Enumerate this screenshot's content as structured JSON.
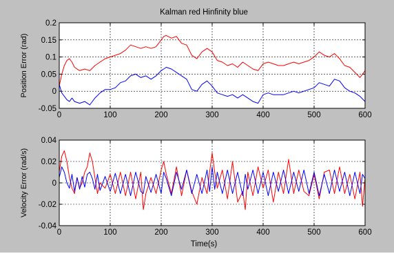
{
  "figure": {
    "title": "Kalman red    Hinfinity blue",
    "xlabel": "Time(s)"
  },
  "colors": {
    "kalman": "#ff0000",
    "hinfinity": "#0000ff",
    "figure_bg": "#c0c0c0"
  },
  "chart_data": [
    {
      "type": "line",
      "title": "Kalman red    Hinfinity blue",
      "xlabel": "",
      "ylabel": "Position Error (rad)",
      "xlim": [
        0,
        600
      ],
      "ylim": [
        -0.05,
        0.2
      ],
      "grid": true,
      "xticks": [
        0,
        100,
        200,
        300,
        400,
        500,
        600
      ],
      "yticks": [
        -0.05,
        0,
        0.05,
        0.1,
        0.15,
        0.2
      ],
      "xtick_labels": [
        "0",
        "100",
        "200",
        "300",
        "400",
        "500",
        "600"
      ],
      "ytick_labels": [
        "-0.05",
        "0",
        "0.05",
        "0.1",
        "0.15",
        "0.2"
      ],
      "series": [
        {
          "color": "#ff0000",
          "x": [
            0,
            5,
            10,
            15,
            20,
            25,
            30,
            40,
            50,
            60,
            70,
            80,
            90,
            100,
            110,
            120,
            130,
            140,
            150,
            160,
            170,
            180,
            190,
            200,
            205,
            210,
            220,
            230,
            240,
            250,
            260,
            270,
            280,
            290,
            300,
            310,
            320,
            330,
            340,
            350,
            360,
            370,
            380,
            390,
            400,
            410,
            420,
            430,
            440,
            450,
            460,
            470,
            480,
            490,
            500,
            510,
            520,
            530,
            540,
            550,
            560,
            570,
            580,
            590,
            600
          ],
          "y": [
            0.015,
            0.05,
            0.075,
            0.09,
            0.095,
            0.085,
            0.07,
            0.06,
            0.065,
            0.06,
            0.075,
            0.085,
            0.095,
            0.1,
            0.105,
            0.11,
            0.12,
            0.135,
            0.13,
            0.125,
            0.13,
            0.125,
            0.13,
            0.15,
            0.16,
            0.163,
            0.155,
            0.16,
            0.14,
            0.135,
            0.105,
            0.095,
            0.115,
            0.125,
            0.115,
            0.09,
            0.085,
            0.075,
            0.08,
            0.07,
            0.085,
            0.075,
            0.065,
            0.06,
            0.08,
            0.085,
            0.08,
            0.075,
            0.075,
            0.08,
            0.085,
            0.08,
            0.085,
            0.09,
            0.1,
            0.115,
            0.105,
            0.1,
            0.11,
            0.095,
            0.075,
            0.07,
            0.055,
            0.04,
            0.06
          ]
        },
        {
          "color": "#0000ff",
          "x": [
            0,
            5,
            10,
            15,
            20,
            25,
            30,
            40,
            50,
            60,
            70,
            80,
            90,
            100,
            110,
            120,
            130,
            140,
            150,
            160,
            170,
            180,
            190,
            200,
            205,
            210,
            220,
            230,
            240,
            250,
            260,
            270,
            280,
            290,
            300,
            310,
            320,
            330,
            340,
            350,
            360,
            370,
            380,
            390,
            400,
            410,
            420,
            430,
            440,
            450,
            460,
            470,
            480,
            490,
            500,
            510,
            520,
            530,
            540,
            550,
            560,
            570,
            580,
            590,
            600
          ],
          "y": [
            0.02,
            -0.005,
            -0.015,
            -0.025,
            -0.03,
            -0.02,
            -0.03,
            -0.035,
            -0.03,
            -0.04,
            -0.02,
            -0.005,
            0.005,
            0.005,
            0.01,
            0.025,
            0.03,
            0.045,
            0.05,
            0.04,
            0.045,
            0.035,
            0.045,
            0.06,
            0.065,
            0.07,
            0.065,
            0.055,
            0.045,
            0.035,
            0.005,
            0.0,
            0.02,
            0.03,
            0.015,
            -0.005,
            -0.01,
            -0.015,
            -0.01,
            -0.02,
            -0.01,
            -0.02,
            -0.03,
            -0.035,
            -0.01,
            -0.005,
            -0.01,
            -0.01,
            -0.01,
            -0.005,
            0.0,
            -0.005,
            0.0,
            0.005,
            0.01,
            0.025,
            0.02,
            0.015,
            0.035,
            0.03,
            0.01,
            0.0,
            -0.005,
            -0.015,
            -0.03
          ]
        }
      ]
    },
    {
      "type": "line",
      "title": "",
      "xlabel": "Time(s)",
      "ylabel": "Velocity Error (rad/s)",
      "xlim": [
        0,
        600
      ],
      "ylim": [
        -0.04,
        0.04
      ],
      "grid": true,
      "xticks": [
        0,
        100,
        200,
        300,
        400,
        500,
        600
      ],
      "yticks": [
        -0.04,
        -0.02,
        0,
        0.02,
        0.04
      ],
      "xtick_labels": [
        "0",
        "100",
        "200",
        "300",
        "400",
        "500",
        "600"
      ],
      "ytick_labels": [
        "-0.04",
        "-0.02",
        "0",
        "0.02",
        "0.04"
      ],
      "series": [
        {
          "color": "#ff0000",
          "x": [
            0,
            5,
            10,
            15,
            20,
            25,
            30,
            35,
            40,
            45,
            50,
            55,
            60,
            65,
            70,
            75,
            80,
            90,
            100,
            110,
            120,
            130,
            140,
            150,
            160,
            165,
            170,
            180,
            190,
            200,
            205,
            210,
            220,
            230,
            240,
            250,
            260,
            270,
            280,
            290,
            295,
            300,
            305,
            310,
            320,
            330,
            340,
            350,
            360,
            365,
            370,
            380,
            390,
            400,
            410,
            420,
            430,
            440,
            450,
            460,
            470,
            480,
            490,
            500,
            510,
            520,
            530,
            540,
            550,
            560,
            570,
            580,
            590,
            595,
            600
          ],
          "y": [
            0.01,
            0.025,
            0.03,
            0.02,
            0.005,
            -0.005,
            -0.01,
            0.005,
            -0.005,
            0.0,
            0.01,
            0.015,
            0.028,
            0.02,
            0.005,
            -0.01,
            0.0,
            -0.005,
            0.008,
            -0.01,
            0.01,
            -0.012,
            0.01,
            -0.015,
            0.01,
            -0.025,
            -0.01,
            0.005,
            -0.01,
            0.012,
            0.02,
            0.008,
            -0.01,
            0.015,
            -0.012,
            0.012,
            -0.008,
            -0.02,
            0.005,
            -0.01,
            0.01,
            0.028,
            0.01,
            -0.005,
            0.012,
            -0.015,
            0.02,
            -0.018,
            -0.008,
            -0.025,
            0.01,
            -0.012,
            0.015,
            -0.005,
            0.012,
            -0.018,
            0.01,
            -0.01,
            0.022,
            -0.01,
            0.012,
            -0.008,
            -0.012,
            0.008,
            -0.015,
            0.01,
            0.012,
            -0.01,
            0.015,
            -0.01,
            0.008,
            -0.015,
            0.01,
            -0.022,
            0.005
          ]
        },
        {
          "color": "#0000ff",
          "x": [
            0,
            5,
            10,
            15,
            20,
            25,
            30,
            35,
            40,
            45,
            50,
            55,
            60,
            65,
            70,
            75,
            80,
            90,
            100,
            110,
            120,
            130,
            140,
            150,
            160,
            165,
            170,
            180,
            190,
            200,
            205,
            210,
            220,
            230,
            240,
            250,
            260,
            270,
            280,
            290,
            295,
            300,
            305,
            310,
            320,
            330,
            340,
            350,
            360,
            365,
            370,
            380,
            390,
            400,
            410,
            420,
            430,
            440,
            450,
            460,
            470,
            480,
            490,
            500,
            510,
            520,
            530,
            540,
            550,
            560,
            570,
            580,
            590,
            595,
            600
          ],
          "y": [
            0.005,
            0.015,
            0.01,
            0.0,
            -0.005,
            0.008,
            -0.008,
            0.005,
            -0.006,
            0.006,
            -0.004,
            0.008,
            0.01,
            0.004,
            -0.006,
            0.008,
            -0.007,
            0.006,
            -0.008,
            0.009,
            -0.01,
            0.008,
            -0.012,
            0.01,
            -0.008,
            -0.01,
            0.006,
            -0.009,
            0.008,
            -0.01,
            0.01,
            0.004,
            -0.012,
            0.01,
            -0.006,
            0.012,
            -0.01,
            0.008,
            -0.01,
            0.012,
            -0.008,
            0.015,
            -0.006,
            0.01,
            -0.01,
            0.012,
            -0.01,
            0.01,
            -0.012,
            0.008,
            -0.006,
            0.012,
            -0.01,
            0.01,
            -0.012,
            0.01,
            -0.008,
            0.012,
            -0.01,
            0.01,
            -0.008,
            0.012,
            -0.01,
            0.01,
            -0.012,
            0.008,
            -0.01,
            0.012,
            -0.008,
            0.01,
            -0.012,
            0.01,
            -0.01,
            0.008,
            0.004
          ]
        }
      ]
    }
  ]
}
